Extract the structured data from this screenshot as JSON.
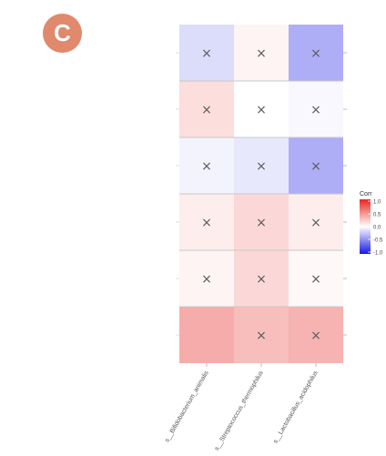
{
  "panel_label": "C",
  "colors": {
    "badge": "#E0896D",
    "positive": "#E8251F",
    "negative": "#1717E6",
    "neutral": "#FFFFFF",
    "mark": "#5A5A5A",
    "row_divider": "#C8C8C8"
  },
  "chart_data": {
    "type": "heatmap",
    "x": [
      "s__Bifidobacterium_animalis",
      "s__Streptococcus_thermophilus",
      "s__Lactobacillus_acidophilus"
    ],
    "rows": 6,
    "values": [
      [
        -0.15,
        0.05,
        -0.35
      ],
      [
        0.15,
        0.0,
        -0.03
      ],
      [
        -0.05,
        -0.1,
        -0.35
      ],
      [
        0.08,
        0.18,
        0.08
      ],
      [
        0.05,
        0.18,
        0.03
      ],
      [
        0.38,
        0.3,
        0.35
      ]
    ],
    "insignificant": [
      [
        true,
        true,
        true
      ],
      [
        true,
        true,
        true
      ],
      [
        true,
        true,
        true
      ],
      [
        true,
        true,
        true
      ],
      [
        true,
        true,
        true
      ],
      [
        false,
        true,
        true
      ]
    ],
    "marker_symbol": "×",
    "legend": {
      "title": "Corr",
      "ticks": [
        "1.0",
        "0.5",
        "0.0",
        "-0.5",
        "-1.0"
      ],
      "range": [
        -1,
        1
      ],
      "placement": "right"
    },
    "xlabel": "",
    "ylabel": ""
  }
}
